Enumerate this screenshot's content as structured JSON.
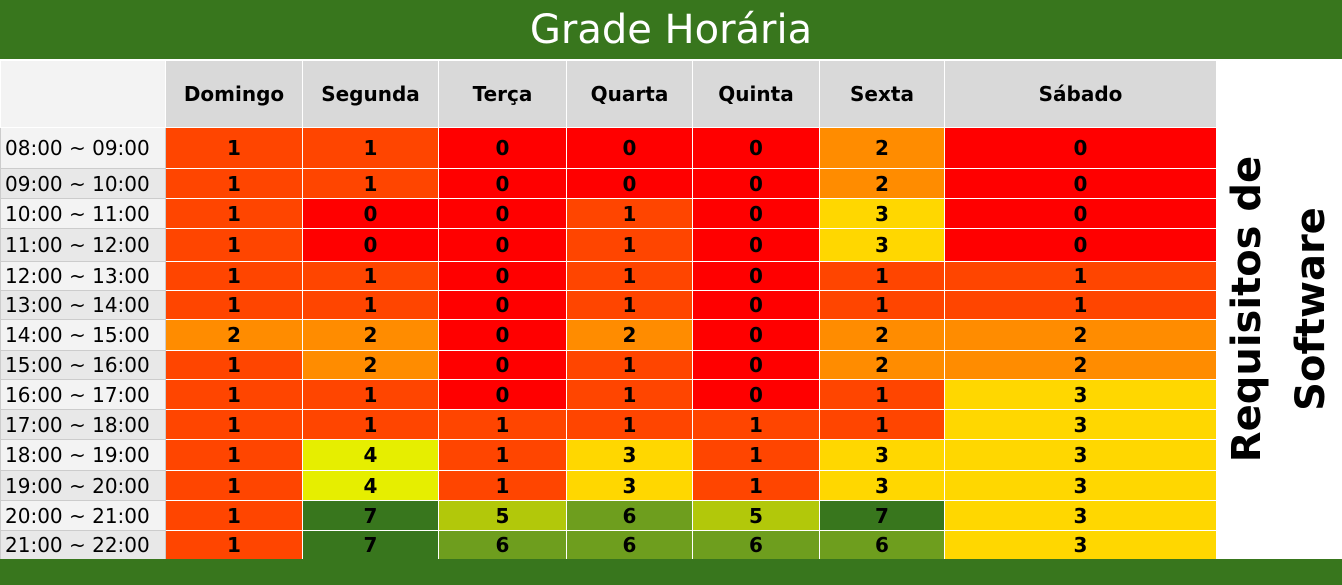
{
  "title": "Grade Horária",
  "side_label_line1": "Requisitos de",
  "side_label_line2": "Software",
  "days": [
    "Domingo",
    "Segunda",
    "Terça",
    "Quarta",
    "Quinta",
    "Sexta",
    "Sábado"
  ],
  "colors": {
    "0": "#ff0000",
    "1": "#ff4500",
    "2": "#ff8c00",
    "3": "#ffd700",
    "4": "#e6ee00",
    "5": "#b2c80a",
    "6": "#6e9e1e",
    "7": "#38761d",
    "header_bg": "#d9d9d9",
    "title_bg": "#38761d"
  },
  "rows": [
    {
      "time": "08:00 ~ 09:00",
      "values": [
        1,
        1,
        0,
        0,
        0,
        2,
        0
      ]
    },
    {
      "time": "09:00 ~ 10:00",
      "values": [
        1,
        1,
        0,
        0,
        0,
        2,
        0
      ]
    },
    {
      "time": "10:00 ~ 11:00",
      "values": [
        1,
        0,
        0,
        1,
        0,
        3,
        0
      ]
    },
    {
      "time": "11:00 ~ 12:00",
      "values": [
        1,
        0,
        0,
        1,
        0,
        3,
        0
      ]
    },
    {
      "time": "12:00 ~ 13:00",
      "values": [
        1,
        1,
        0,
        1,
        0,
        1,
        1
      ]
    },
    {
      "time": "13:00 ~ 14:00",
      "values": [
        1,
        1,
        0,
        1,
        0,
        1,
        1
      ]
    },
    {
      "time": "14:00 ~ 15:00",
      "values": [
        2,
        2,
        0,
        2,
        0,
        2,
        2
      ]
    },
    {
      "time": "15:00 ~ 16:00",
      "values": [
        1,
        2,
        0,
        1,
        0,
        2,
        2
      ]
    },
    {
      "time": "16:00 ~ 17:00",
      "values": [
        1,
        1,
        0,
        1,
        0,
        1,
        3
      ]
    },
    {
      "time": "17:00 ~ 18:00",
      "values": [
        1,
        1,
        1,
        1,
        1,
        1,
        3
      ]
    },
    {
      "time": "18:00 ~ 19:00",
      "values": [
        1,
        4,
        1,
        3,
        1,
        3,
        3
      ]
    },
    {
      "time": "19:00 ~ 20:00",
      "values": [
        1,
        4,
        1,
        3,
        1,
        3,
        3
      ]
    },
    {
      "time": "20:00 ~ 21:00",
      "values": [
        1,
        7,
        5,
        6,
        5,
        7,
        3
      ]
    },
    {
      "time": "21:00 ~ 22:00",
      "values": [
        1,
        7,
        6,
        6,
        6,
        6,
        3
      ]
    }
  ]
}
